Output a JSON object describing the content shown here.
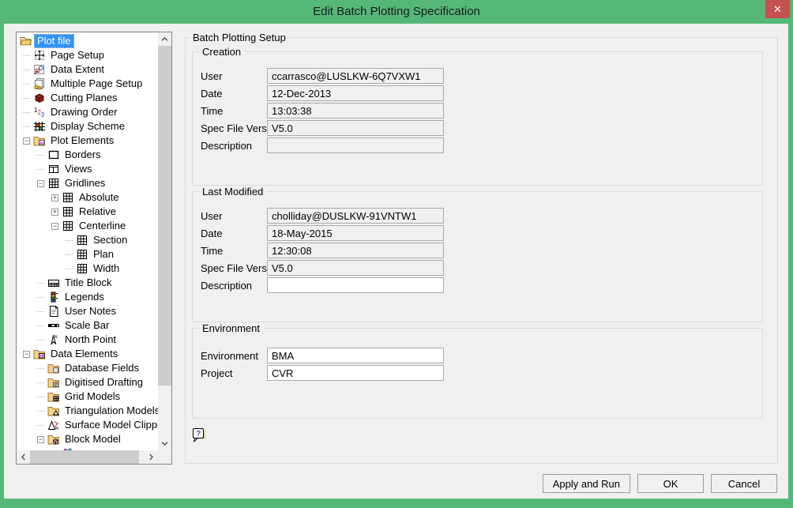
{
  "window": {
    "title": "Edit Batch Plotting Specification",
    "close_glyph": "✕",
    "close_icon": "close-icon"
  },
  "colors": {
    "titlebar_green": "#55b878",
    "close_red": "#c75050",
    "selection_blue": "#3094fa",
    "dialog_bg": "#f0f0f0",
    "readonly_field_bg": "#f0f0f0",
    "editable_field_bg": "#ffffff"
  },
  "tree": {
    "items": [
      {
        "label": "Plot file",
        "level": 0,
        "icon": "folder-open",
        "expand": null,
        "selected": true
      },
      {
        "label": "Page Setup",
        "level": 1,
        "icon": "page-setup",
        "expand": null
      },
      {
        "label": "Data Extent",
        "level": 1,
        "icon": "data-extent",
        "expand": null
      },
      {
        "label": "Multiple Page Setup",
        "level": 1,
        "icon": "multiple-page-setup",
        "expand": null
      },
      {
        "label": "Cutting Planes",
        "level": 1,
        "icon": "cutting-planes",
        "expand": null
      },
      {
        "label": "Drawing Order",
        "level": 1,
        "icon": "drawing-order",
        "expand": null
      },
      {
        "label": "Display Scheme",
        "level": 1,
        "icon": "display-scheme",
        "expand": null
      },
      {
        "label": "Plot Elements",
        "level": 1,
        "icon": "folder-image",
        "expand": "minus"
      },
      {
        "label": "Borders",
        "level": 2,
        "icon": "borders",
        "expand": null
      },
      {
        "label": "Views",
        "level": 2,
        "icon": "views",
        "expand": null
      },
      {
        "label": "Gridlines",
        "level": 2,
        "icon": "grid",
        "expand": "minus"
      },
      {
        "label": "Absolute",
        "level": 3,
        "icon": "grid",
        "expand": "plus"
      },
      {
        "label": "Relative",
        "level": 3,
        "icon": "grid",
        "expand": "plus"
      },
      {
        "label": "Centerline",
        "level": 3,
        "icon": "grid",
        "expand": "minus"
      },
      {
        "label": "Section",
        "level": 4,
        "icon": "grid",
        "expand": null
      },
      {
        "label": "Plan",
        "level": 4,
        "icon": "grid",
        "expand": null
      },
      {
        "label": "Width",
        "level": 4,
        "icon": "grid",
        "expand": null
      },
      {
        "label": "Title Block",
        "level": 2,
        "icon": "title-block",
        "expand": null
      },
      {
        "label": "Legends",
        "level": 2,
        "icon": "legends",
        "expand": null
      },
      {
        "label": "User Notes",
        "level": 2,
        "icon": "user-notes",
        "expand": null
      },
      {
        "label": "Scale Bar",
        "level": 2,
        "icon": "scale-bar",
        "expand": null
      },
      {
        "label": "North Point",
        "level": 2,
        "icon": "north-point",
        "expand": null
      },
      {
        "label": "Data Elements",
        "level": 1,
        "icon": "folder-grid",
        "expand": "minus"
      },
      {
        "label": "Database Fields",
        "level": 2,
        "icon": "folder-database",
        "expand": null
      },
      {
        "label": "Digitised Drafting",
        "level": 2,
        "icon": "folder-drafting",
        "expand": null
      },
      {
        "label": "Grid Models",
        "level": 2,
        "icon": "folder-grid-model",
        "expand": null
      },
      {
        "label": "Triangulation Models",
        "level": 2,
        "icon": "folder-triangle",
        "expand": null
      },
      {
        "label": "Surface Model Clippin",
        "level": 2,
        "icon": "surface-clipping",
        "expand": null
      },
      {
        "label": "Block Model",
        "level": 2,
        "icon": "folder-block",
        "expand": "minus"
      },
      {
        "label": "",
        "level": 3,
        "icon": "block-selection",
        "expand": null,
        "clipped": true
      }
    ]
  },
  "main": {
    "group_title": "Batch Plotting Setup",
    "help_icon": "help-question-icon",
    "sections": [
      {
        "title": "Creation",
        "fields": [
          {
            "label": "User",
            "value": "ccarrasco@LUSLKW-6Q7VXW1",
            "editable": false
          },
          {
            "label": "Date",
            "value": "12-Dec-2013",
            "editable": false
          },
          {
            "label": "Time",
            "value": "13:03:38",
            "editable": false
          },
          {
            "label": "Spec File Version",
            "value": "V5.0",
            "editable": false
          },
          {
            "label": "Description",
            "value": "",
            "editable": false
          }
        ]
      },
      {
        "title": "Last Modified",
        "fields": [
          {
            "label": "User",
            "value": "cholliday@DUSLKW-91VNTW1",
            "editable": false
          },
          {
            "label": "Date",
            "value": "18-May-2015",
            "editable": false
          },
          {
            "label": "Time",
            "value": "12:30:08",
            "editable": false
          },
          {
            "label": "Spec File Version",
            "value": "V5.0",
            "editable": false
          },
          {
            "label": "Description",
            "value": "",
            "editable": true
          }
        ]
      },
      {
        "title": "Environment",
        "fields": [
          {
            "label": "Environment",
            "value": "BMA",
            "editable": true
          },
          {
            "label": "Project",
            "value": "CVR",
            "editable": true
          }
        ]
      }
    ]
  },
  "buttons": [
    {
      "label": "Apply and Run"
    },
    {
      "label": "OK"
    },
    {
      "label": "Cancel"
    }
  ]
}
